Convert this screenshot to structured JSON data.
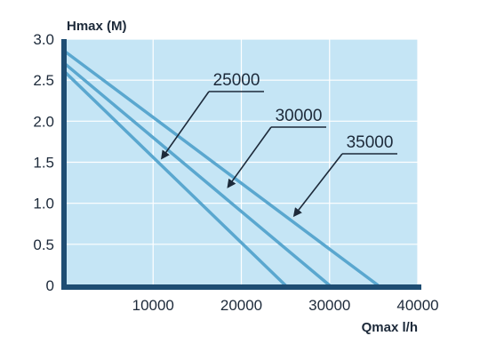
{
  "chart_data": {
    "type": "line",
    "title": "",
    "xlabel": "Qmax l/h",
    "ylabel": "Hmax (M)",
    "xlim": [
      0,
      40000
    ],
    "ylim": [
      0,
      3.0
    ],
    "x_ticks": [
      10000,
      20000,
      30000,
      40000
    ],
    "y_ticks": [
      0,
      0.5,
      1.0,
      1.5,
      2.0,
      2.5,
      3.0
    ],
    "x_tick_labels": [
      "10000",
      "20000",
      "30000",
      "40000"
    ],
    "y_tick_labels": [
      "0",
      "0.5",
      "1.0",
      "1.5",
      "2.0",
      "2.5",
      "3.0"
    ],
    "grid": true,
    "colors": {
      "background": "#c5e5f5",
      "grid": "#ffffff",
      "line": "#5aa7cf",
      "axis": "#1e4d73",
      "text": "#1d2a3a"
    },
    "series": [
      {
        "name": "25000",
        "x": [
          0,
          25000
        ],
        "y": [
          2.6,
          0
        ],
        "label_anchor": [
          11000,
          1.55
        ]
      },
      {
        "name": "30000",
        "x": [
          0,
          30000
        ],
        "y": [
          2.7,
          0
        ],
        "label_anchor": [
          18500,
          1.2
        ]
      },
      {
        "name": "35000",
        "x": [
          0,
          35500
        ],
        "y": [
          2.85,
          0
        ],
        "label_anchor": [
          26000,
          0.85
        ]
      }
    ]
  }
}
